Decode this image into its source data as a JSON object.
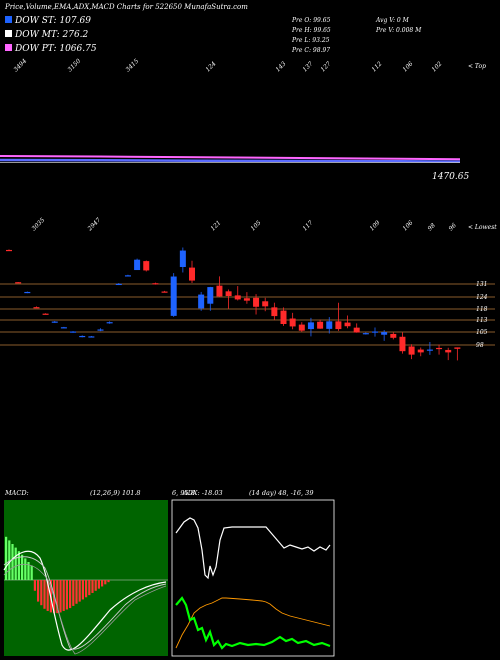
{
  "header": {
    "title": "Price,Volume,EMA,ADX,MACD Charts for 522650 MunafaSutra.com"
  },
  "legend": [
    {
      "label": "DOW ST: 107.69",
      "color": "#1e63ff"
    },
    {
      "label": "DOW MT: 276.2",
      "color": "#ffffff"
    },
    {
      "label": "DOW PT: 1066.75",
      "color": "#ff66ff"
    }
  ],
  "stats": {
    "col1": [
      "Pre O: 99.65",
      "Pre H: 99.65",
      "Pre L: 93.25",
      "Pre C: 98.97"
    ],
    "col2": [
      "Avg V: 0 M",
      "Pre V: 0.008 M"
    ]
  },
  "chart_data": [
    {
      "type": "line",
      "name": "volume-ema-panel",
      "top_labels": [
        "3494",
        "3150",
        "3415",
        "124",
        "143",
        "137",
        "127",
        "112",
        "106",
        "102"
      ],
      "top_side_label": "< Top",
      "value_label": "1470.65",
      "series_colors": [
        "#ff66ff",
        "#5a6bff",
        "#ffffff"
      ]
    },
    {
      "type": "candlestick",
      "name": "price-panel",
      "top_labels": [
        "3035",
        "2947",
        "121",
        "105",
        "117",
        "109",
        "106",
        "98",
        "96"
      ],
      "top_side_label": "< Lowest",
      "price_levels": [
        "131",
        "124",
        "118",
        "113",
        "105",
        "98"
      ],
      "candles": [
        {
          "o": 147.7,
          "h": 148.0,
          "l": 147.3,
          "c": 147.5
        },
        {
          "o": 131.8,
          "h": 131.9,
          "l": 131.5,
          "c": 131.7
        },
        {
          "o": 126.8,
          "h": 127.2,
          "l": 126.4,
          "c": 127.0
        },
        {
          "o": 119.5,
          "h": 119.9,
          "l": 119.1,
          "c": 119.3
        },
        {
          "o": 116.3,
          "h": 116.5,
          "l": 115.9,
          "c": 116.1
        },
        {
          "o": 112.1,
          "h": 112.7,
          "l": 111.8,
          "c": 112.4
        },
        {
          "o": 109.4,
          "h": 109.8,
          "l": 109.1,
          "c": 109.6
        },
        {
          "o": 107.3,
          "h": 107.7,
          "l": 106.9,
          "c": 107.5
        },
        {
          "o": 104.9,
          "h": 105.6,
          "l": 104.6,
          "c": 105.3
        },
        {
          "o": 105.0,
          "h": 105.3,
          "l": 104.8,
          "c": 105.1
        },
        {
          "o": 108.1,
          "h": 109.1,
          "l": 107.7,
          "c": 108.5
        },
        {
          "o": 111.8,
          "h": 112.5,
          "l": 111.3,
          "c": 112.1
        },
        {
          "o": 130.8,
          "h": 131.4,
          "l": 130.4,
          "c": 131.0
        },
        {
          "o": 135.0,
          "h": 135.5,
          "l": 134.8,
          "c": 135.2
        },
        {
          "o": 137.8,
          "h": 143.4,
          "l": 137.8,
          "c": 142.9
        },
        {
          "o": 142.2,
          "h": 142.5,
          "l": 137.1,
          "c": 137.6
        },
        {
          "o": 131.3,
          "h": 131.6,
          "l": 130.6,
          "c": 131.1
        },
        {
          "o": 127.2,
          "h": 127.5,
          "l": 126.7,
          "c": 127.0
        },
        {
          "o": 115.2,
          "h": 136.3,
          "l": 114.7,
          "c": 134.6
        },
        {
          "o": 139.3,
          "h": 148.9,
          "l": 136.6,
          "c": 147.4
        },
        {
          "o": 139.0,
          "h": 142.4,
          "l": 131.4,
          "c": 132.6
        },
        {
          "o": 118.9,
          "h": 127.0,
          "l": 117.7,
          "c": 125.7
        },
        {
          "o": 121.2,
          "h": 129.5,
          "l": 117.7,
          "c": 129.4
        },
        {
          "o": 130.1,
          "h": 134.7,
          "l": 124.5,
          "c": 124.8
        },
        {
          "o": 127.3,
          "h": 128.2,
          "l": 118.7,
          "c": 125.0
        },
        {
          "o": 125.3,
          "h": 129.9,
          "l": 122.8,
          "c": 123.3
        },
        {
          "o": 123.9,
          "h": 126.9,
          "l": 121.2,
          "c": 122.7
        },
        {
          "o": 124.1,
          "h": 125.9,
          "l": 115.9,
          "c": 119.7
        },
        {
          "o": 122.4,
          "h": 124.1,
          "l": 117.5,
          "c": 119.9
        },
        {
          "o": 119.4,
          "h": 121.7,
          "l": 113.1,
          "c": 115.1
        },
        {
          "o": 117.8,
          "h": 119.4,
          "l": 110.3,
          "c": 111.2
        },
        {
          "o": 113.9,
          "h": 116.7,
          "l": 108.6,
          "c": 110.0
        },
        {
          "o": 110.9,
          "h": 112.1,
          "l": 107.3,
          "c": 107.9
        },
        {
          "o": 108.7,
          "h": 114.2,
          "l": 105.1,
          "c": 112.0
        },
        {
          "o": 112.3,
          "h": 113.4,
          "l": 108.8,
          "c": 108.9
        },
        {
          "o": 108.8,
          "h": 114.6,
          "l": 106.5,
          "c": 112.5
        },
        {
          "o": 112.5,
          "h": 121.7,
          "l": 107.8,
          "c": 108.7
        },
        {
          "o": 111.9,
          "h": 115.4,
          "l": 109.1,
          "c": 110.1
        },
        {
          "o": 109.4,
          "h": 111.5,
          "l": 106.9,
          "c": 107.0
        },
        {
          "o": 106.4,
          "h": 107.0,
          "l": 106.0,
          "c": 106.7
        },
        {
          "o": 107.2,
          "h": 109.5,
          "l": 105.0,
          "c": 107.5
        },
        {
          "o": 105.9,
          "h": 108.2,
          "l": 102.9,
          "c": 107.2
        },
        {
          "o": 106.3,
          "h": 107.1,
          "l": 103.6,
          "c": 104.4
        },
        {
          "o": 104.9,
          "h": 107.0,
          "l": 96.6,
          "c": 97.8
        },
        {
          "o": 100.1,
          "h": 101.2,
          "l": 93.9,
          "c": 96.1
        },
        {
          "o": 98.6,
          "h": 99.6,
          "l": 95.3,
          "c": 97.2
        },
        {
          "o": 98.1,
          "h": 102.3,
          "l": 96.0,
          "c": 98.6
        },
        {
          "o": 99.4,
          "h": 101.1,
          "l": 96.1,
          "c": 99.2
        },
        {
          "o": 98.4,
          "h": 99.5,
          "l": 93.4,
          "c": 97.2
        },
        {
          "o": 99.65,
          "h": 99.65,
          "l": 93.25,
          "c": 98.97
        }
      ]
    },
    {
      "type": "bar",
      "name": "macd-panel",
      "label": "MACD:",
      "params": "(12,26,9) 101.8",
      "values_text": "6, 95.8",
      "histogram": [
        6,
        5.5,
        5,
        4.5,
        4,
        3.5,
        3,
        2.5,
        2,
        -1.5,
        -3,
        -3.5,
        -4,
        -4.3,
        -4.5,
        -4.6,
        -4.6,
        -4.5,
        -4.3,
        -4.1,
        -3.9,
        -3.6,
        -3.3,
        -3,
        -2.7,
        -2.4,
        -2.1,
        -1.8,
        -1.5,
        -1.2,
        -0.9,
        -0.6,
        -0.3
      ]
    },
    {
      "type": "line",
      "name": "adx-panel",
      "label": "ADX: -18.03",
      "params": "(14 day) 48, -16, 39",
      "series_colors": [
        "#ffffff",
        "#ff9900",
        "#00ff00"
      ]
    }
  ]
}
